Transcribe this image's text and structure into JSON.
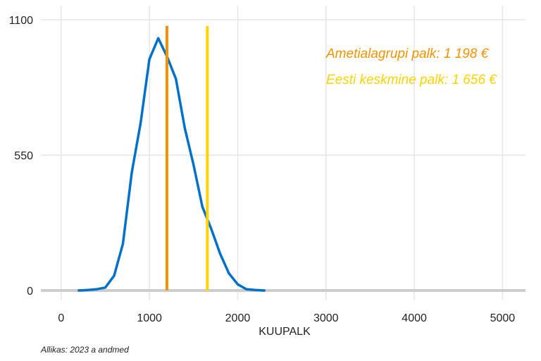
{
  "chart_data": {
    "type": "line",
    "xlabel": "KUUPALK",
    "ylabel": "",
    "xlim": [
      -230,
      5260
    ],
    "ylim": [
      0,
      1100
    ],
    "x_ticks": [
      0,
      1000,
      2000,
      3000,
      4000,
      5000
    ],
    "y_ticks": [
      0,
      550,
      1100
    ],
    "series": [
      {
        "color": "#0070c8",
        "x": [
          0,
          100,
          200,
          300,
          400,
          500,
          600,
          700,
          800,
          900,
          1000,
          1100,
          1200,
          1300,
          1400,
          1500,
          1600,
          1700,
          1800,
          1900,
          2000,
          2100,
          2200,
          2300,
          2400,
          2500,
          3000,
          4000,
          5000,
          5260
        ],
        "y": [
          0,
          0,
          0,
          2,
          5,
          12,
          60,
          190,
          480,
          680,
          940,
          1025,
          950,
          860,
          660,
          510,
          340,
          250,
          150,
          70,
          25,
          5,
          2,
          0,
          0,
          0,
          0,
          0,
          0,
          0
        ]
      }
    ],
    "vlines": [
      {
        "x": 1198,
        "y_top": 1075,
        "color": "#f39200"
      },
      {
        "x": 1656,
        "y_top": 1075,
        "color": "#ffd200"
      }
    ],
    "annotations": [
      {
        "text": "Ametialagrupi palk: 1 198 €",
        "color": "#f39200"
      },
      {
        "text": "Eesti keskmine palk: 1 656 €",
        "color": "#ffd200"
      }
    ],
    "grid": true,
    "baseline_color": "#cccccc"
  },
  "source": "Allikas: 2023 a andmed"
}
